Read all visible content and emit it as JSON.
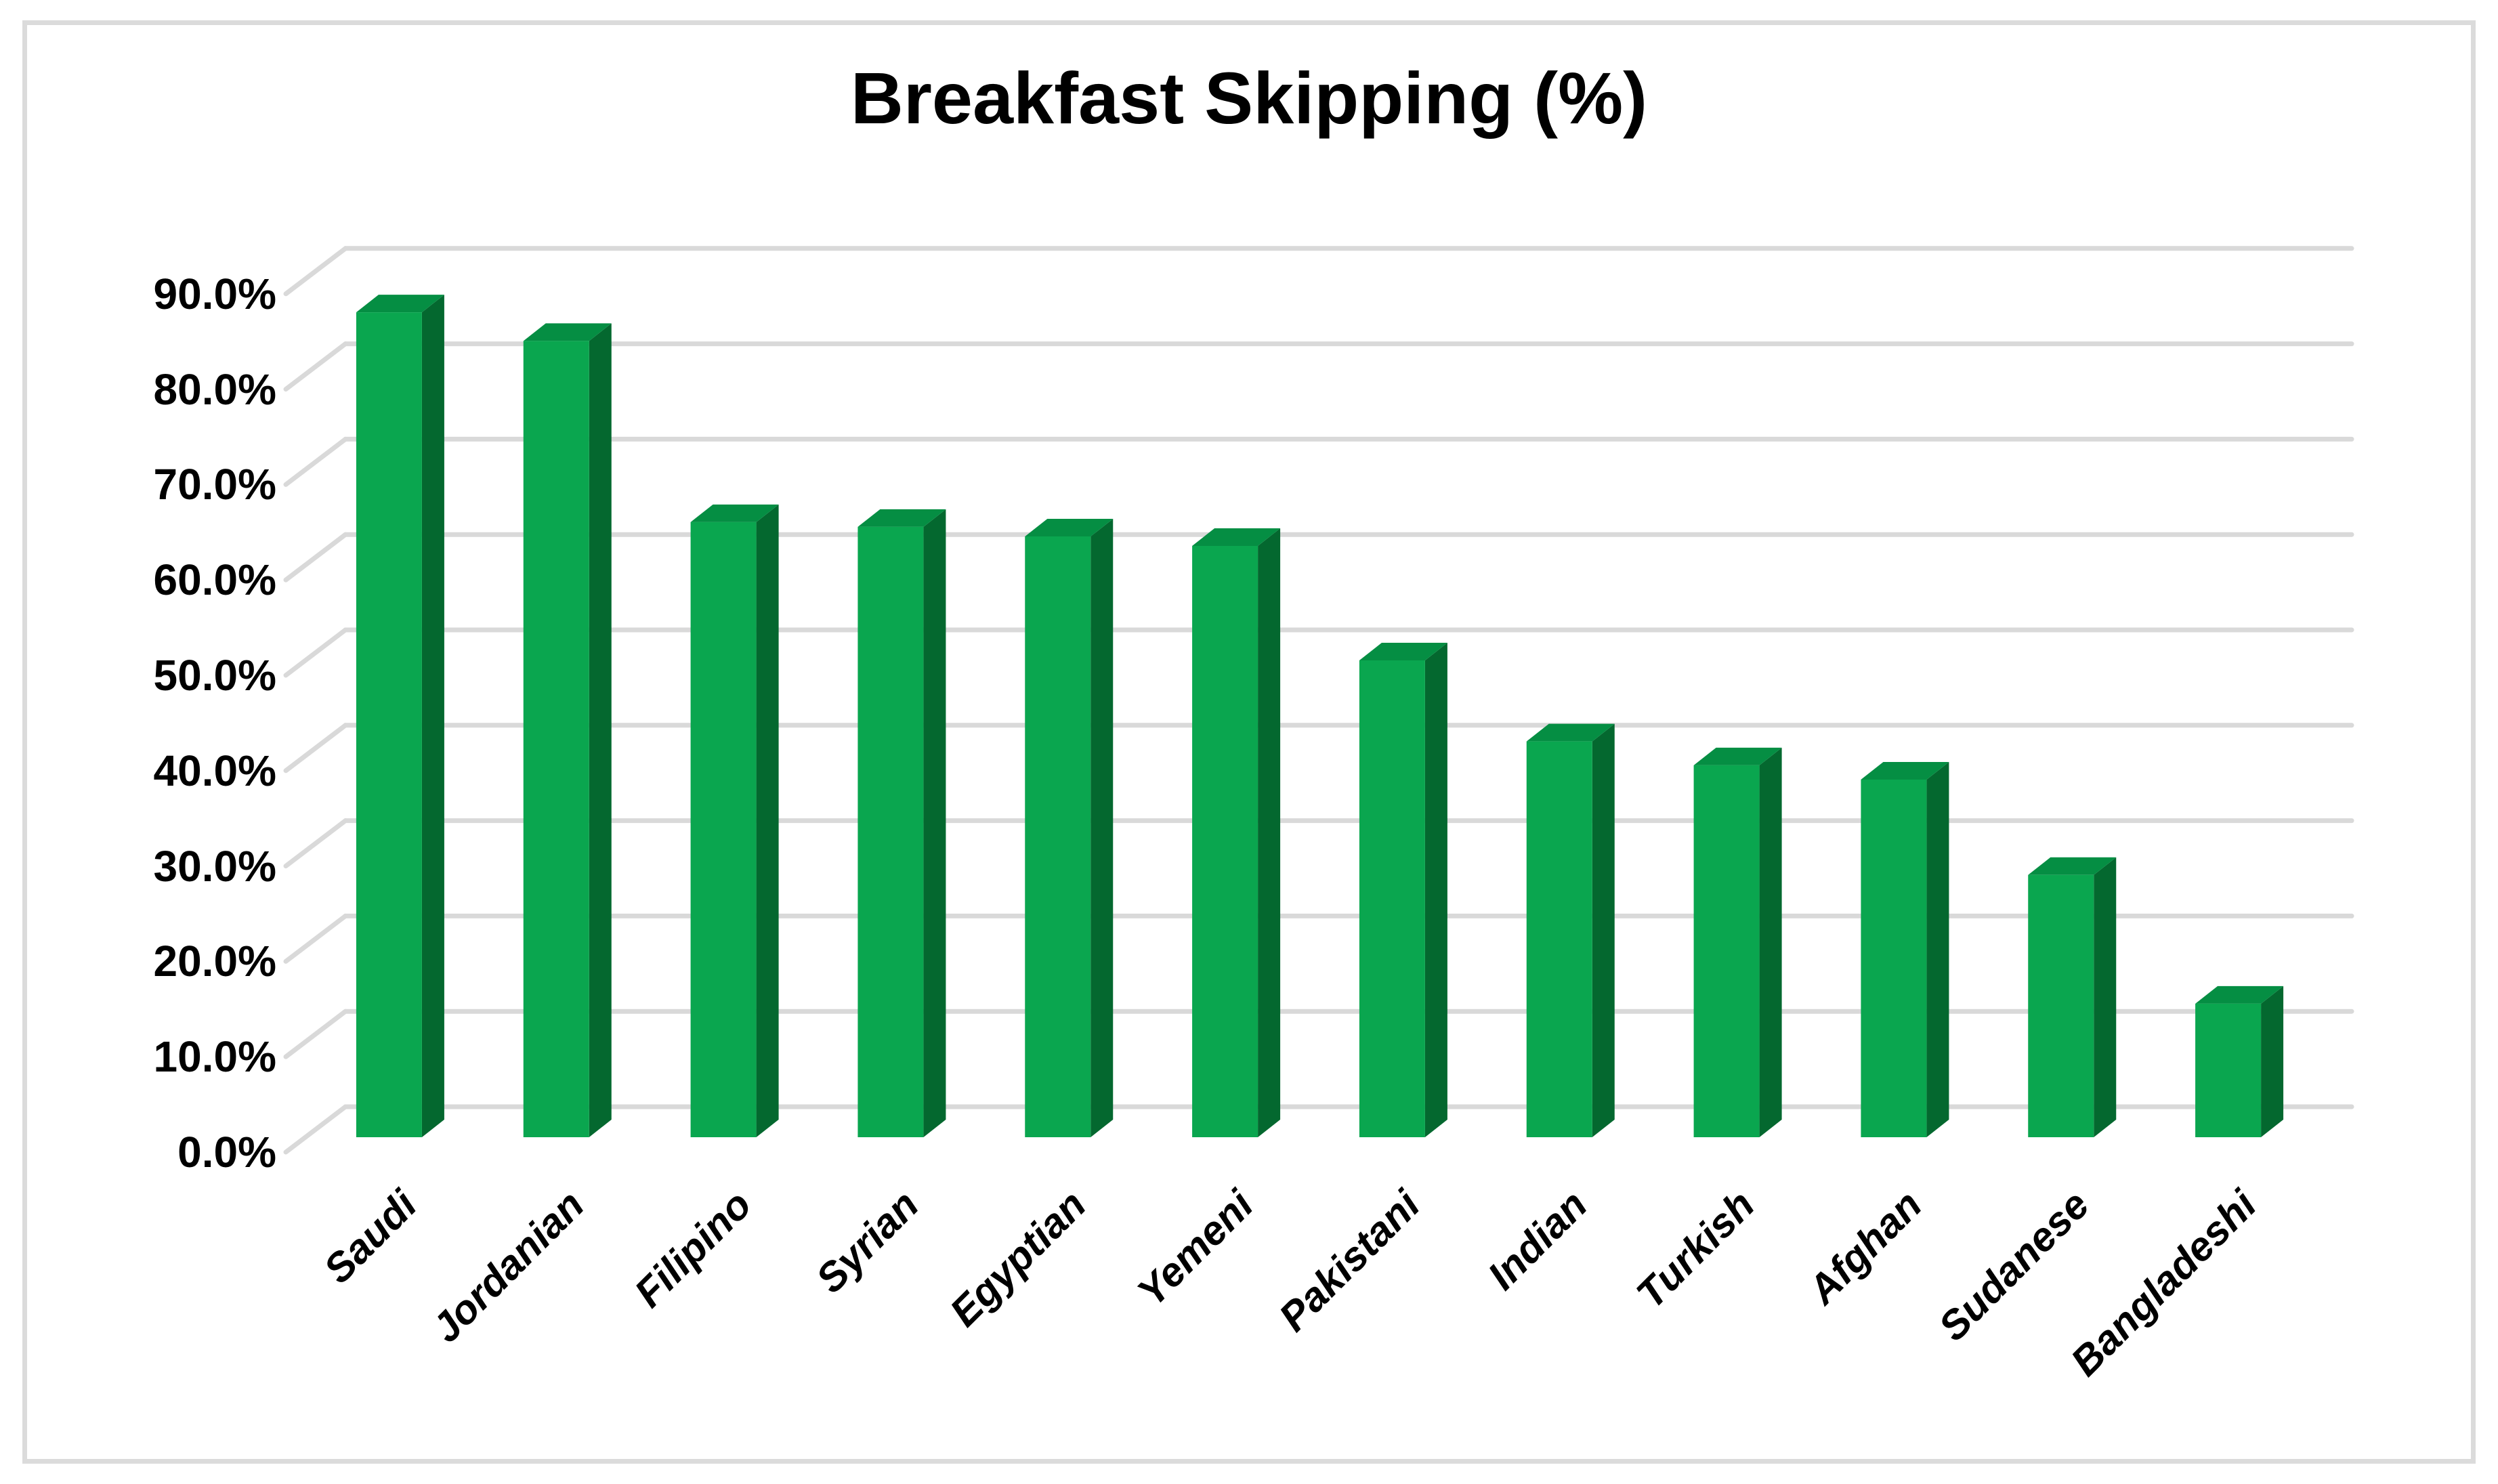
{
  "title": "Breakfast Skipping (%)",
  "chart_data": {
    "type": "bar",
    "variant": "3d-column",
    "title": "Breakfast Skipping (%)",
    "categories": [
      "Saudi",
      "Jordanian",
      "Filipino",
      "Syrian",
      "Egyptian",
      "Yemeni",
      "Pakistani",
      "Indian",
      "Turkish",
      "Afghan",
      "Sudanese",
      "Bangladeshi"
    ],
    "values": [
      86.5,
      83.5,
      64.5,
      64.0,
      63.0,
      62.0,
      50.0,
      41.5,
      39.0,
      37.5,
      27.5,
      14.0
    ],
    "unit": "%",
    "xlabel": "",
    "ylabel": "",
    "ylim": [
      0,
      90
    ],
    "ytick_step": 10,
    "ytick_labels": [
      "0.0%",
      "10.0%",
      "20.0%",
      "30.0%",
      "40.0%",
      "50.0%",
      "60.0%",
      "70.0%",
      "80.0%",
      "90.0%"
    ],
    "grid": true,
    "legend": false,
    "colors": {
      "bar_front": "#0aa64f",
      "bar_top": "#058e43",
      "bar_side": "#04682f",
      "gridline": "#d9d9d9",
      "frame_border": "#dbdbdb",
      "text": "#000000",
      "background": "#ffffff"
    }
  }
}
